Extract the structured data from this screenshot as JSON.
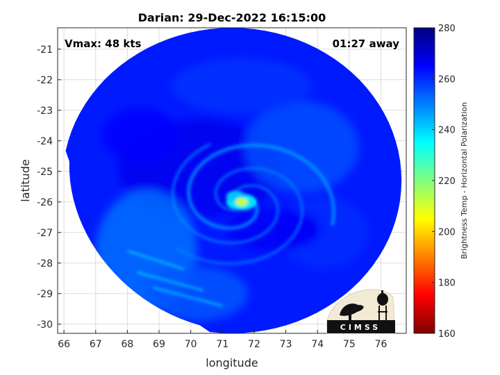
{
  "chart_data": {
    "type": "heatmap",
    "title": "Darian: 29-Dec-2022 16:15:00",
    "xlabel": "longitude",
    "ylabel": "latitude",
    "xlim": [
      65.8,
      76.8
    ],
    "ylim": [
      -30.3,
      -20.3
    ],
    "x_ticks": [
      66,
      67,
      68,
      69,
      70,
      71,
      72,
      73,
      74,
      75,
      76
    ],
    "y_ticks": [
      -21,
      -22,
      -23,
      -24,
      -25,
      -26,
      -27,
      -28,
      -29,
      -30
    ],
    "grid": true,
    "annotations": {
      "left": "Vmax: 48 kts",
      "right": "01:27 away"
    },
    "colorbar": {
      "label": "Brightness Temp - Horizontal Polarization",
      "range": [
        160,
        280
      ],
      "ticks": [
        160,
        180,
        200,
        220,
        240,
        260,
        280
      ],
      "colormap": "jet"
    },
    "field": {
      "storm_center": {
        "lon": 71.6,
        "lat": -26.0
      },
      "swath_center": {
        "lon": 71.3,
        "lat": -25.3
      },
      "swath_radius_deg": 5.0,
      "background_tb": 262,
      "eye_tb": 212
    },
    "logo_text": "CIMSS"
  }
}
